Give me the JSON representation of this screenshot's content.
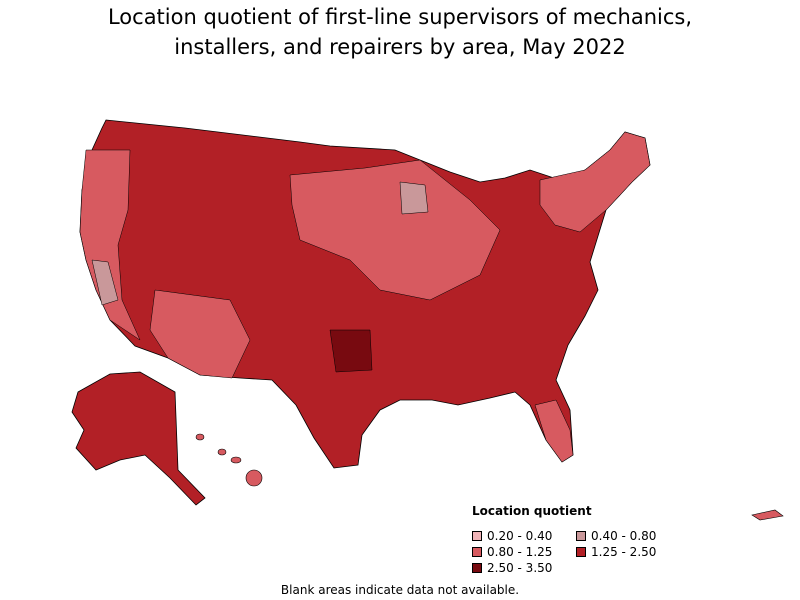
{
  "title": {
    "line1": "Location quotient of first-line supervisors of mechanics,",
    "line2": "installers, and repairers by area, May 2022"
  },
  "legend": {
    "title": "Location quotient",
    "items": [
      {
        "label": "0.20 - 0.40",
        "color": "#f0b4b8"
      },
      {
        "label": "0.40 - 0.80",
        "color": "#c9989a"
      },
      {
        "label": "0.80 - 1.25",
        "color": "#d75a60"
      },
      {
        "label": "1.25 - 2.50",
        "color": "#b22026"
      },
      {
        "label": "2.50 - 3.50",
        "color": "#780a10"
      }
    ]
  },
  "footnote": "Blank areas indicate data not available.",
  "colors": {
    "low": "#f0b4b8",
    "mid_low": "#c9989a",
    "mid": "#d75a60",
    "high": "#b22026",
    "very_high": "#780a10",
    "border": "#000000"
  }
}
